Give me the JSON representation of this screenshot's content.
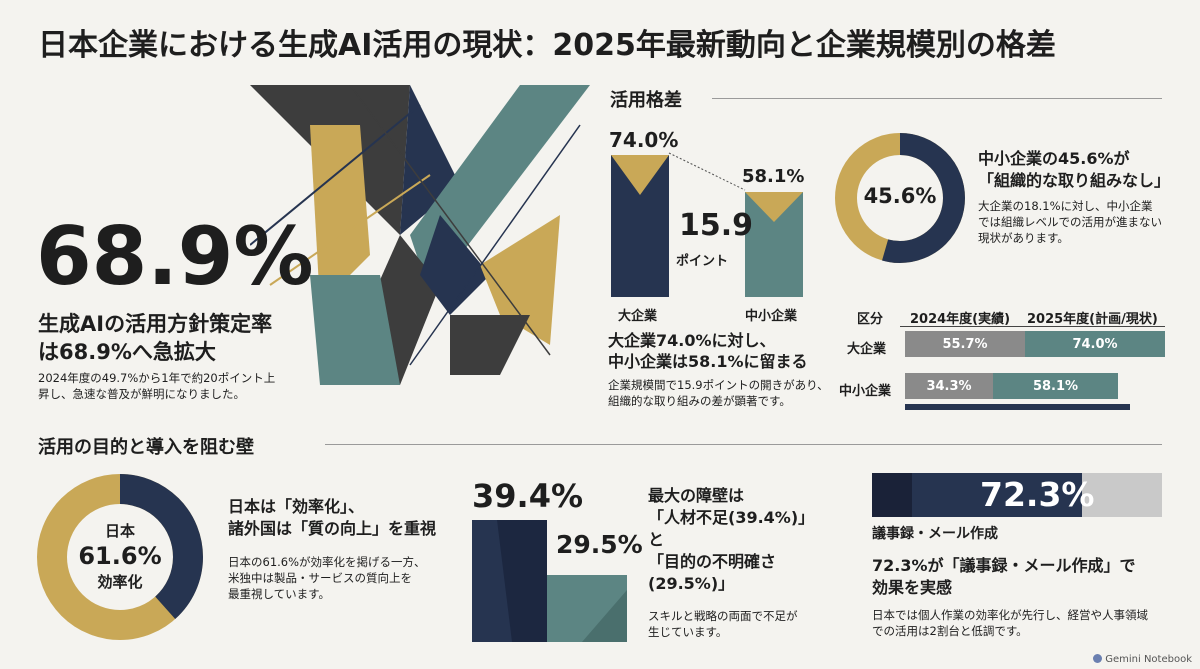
{
  "title": "日本企業における生成AI活用の現状：2025年最新動向と企業規模別の格差",
  "colors": {
    "navy": "#263450",
    "gold": "#c9a857",
    "teal": "#5c8583",
    "dark": "#3d3d3d",
    "gray": "#c9c9c9"
  },
  "hero": {
    "value": "68.9%",
    "headline_line1": "生成AIの活用方針策定率",
    "headline_line2": "は68.9%へ急拡大",
    "desc_line1": "2024年度の49.7%から1年で約20ポイント上",
    "desc_line2": "昇し、急速な普及が鮮明になりました。"
  },
  "gap": {
    "section_title": "活用格差",
    "large_value": "74.0%",
    "small_value": "58.1%",
    "diff_value": "15.9",
    "diff_unit": "ポイント",
    "large_label": "大企業",
    "small_label": "中小企業",
    "headline_line1": "大企業74.0%に対し、",
    "headline_line2": "中小企業は58.1%に留まる",
    "desc_line1": "企業規模間で15.9ポイントの開きがあり、",
    "desc_line2": "組織的な取り組みの差が顕著です。"
  },
  "org": {
    "donut_value": "45.6%",
    "percent": 45.6,
    "headline_line1": "中小企業の45.6%が",
    "headline_line2": "「組織的な取り組みなし」",
    "desc_line1": "大企業の18.1%に対し、中小企業",
    "desc_line2": "では組織レベルでの活用が進まない",
    "desc_line3": "現状があります。"
  },
  "table": {
    "col0": "区分",
    "col1": "2024年度(実績)",
    "col2": "2025年度(計画/現状)",
    "rows": [
      {
        "label": "大企業",
        "v2024": "55.7%",
        "v2025": "74.0%"
      },
      {
        "label": "中小企業",
        "v2024": "34.3%",
        "v2025": "58.1%"
      }
    ]
  },
  "purpose": {
    "section_title": "活用の目的と導入を阻む壁",
    "donut_top": "日本",
    "donut_value": "61.6%",
    "donut_bottom": "効率化",
    "percent": 61.6,
    "headline_line1": "日本は「効率化」、",
    "headline_line2": "諸外国は「質の向上」を重視",
    "desc_line1": "日本の61.6%が効率化を掲げる一方、",
    "desc_line2": "米独中は製品・サービスの質向上を",
    "desc_line3": "最重視しています。"
  },
  "barrier": {
    "value1": "39.4%",
    "value2": "29.5%",
    "headline_line1": "最大の障壁は",
    "headline_line2": "「人材不足(39.4%)」",
    "headline_line3": "と",
    "headline_line4": "「目的の不明確さ",
    "headline_line5": "(29.5%)」",
    "desc_line1": "スキルと戦略の両面で不足が",
    "desc_line2": "生じています。"
  },
  "usage": {
    "value": "72.3%",
    "percent": 72.3,
    "bar_label": "議事録・メール作成",
    "headline_line1": "72.3%が「議事録・メール作成」で",
    "headline_line2": "効果を実感",
    "desc_line1": "日本では個人作業の効率化が先行し、経営や人事領域",
    "desc_line2": "での活用は2割台と低調です。"
  },
  "footer": {
    "brand": "Gemini Notebook"
  }
}
